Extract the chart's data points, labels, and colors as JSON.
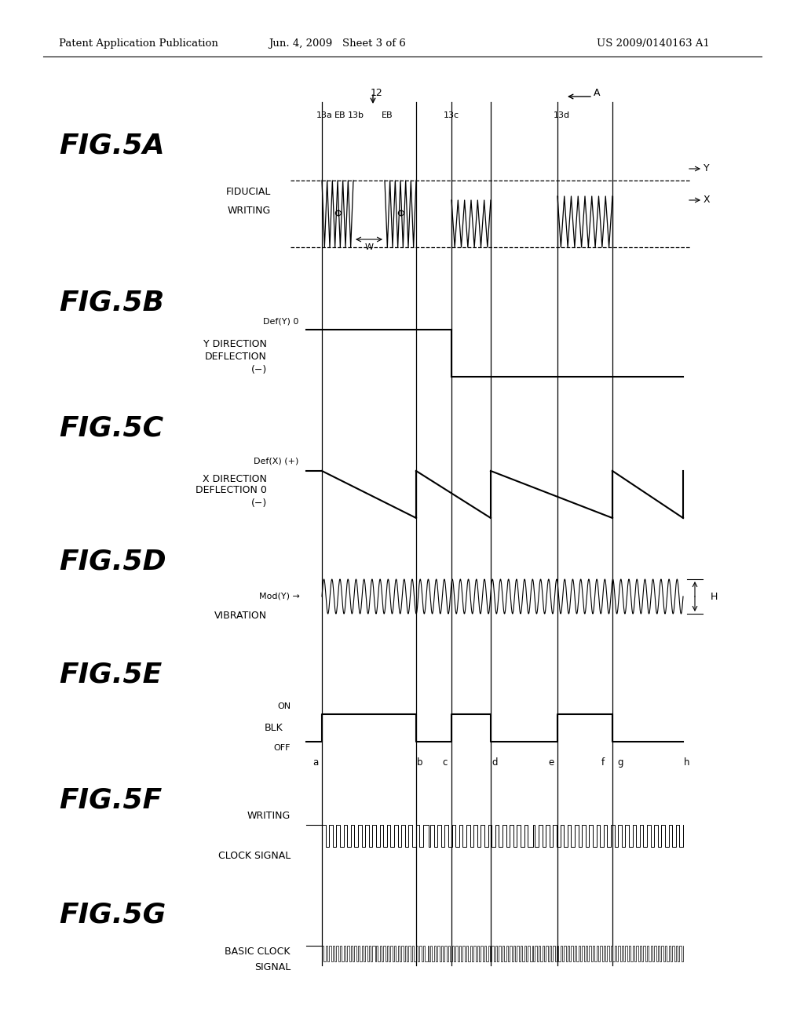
{
  "header_left": "Patent Application Publication",
  "header_center": "Jun. 4, 2009   Sheet 3 of 6",
  "header_right": "US 2009/0140163 A1",
  "bg_color": "#ffffff",
  "text_color": "#000000",
  "line_color": "#000000"
}
